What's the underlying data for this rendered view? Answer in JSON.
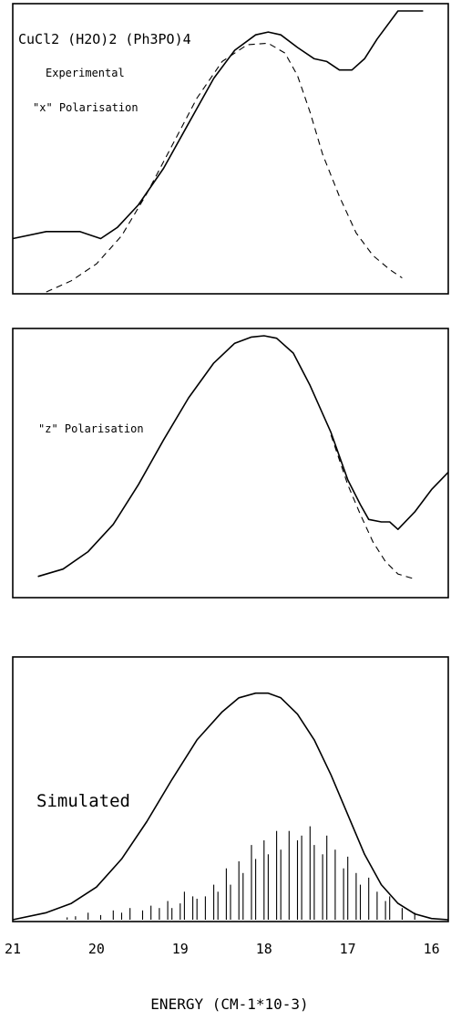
{
  "chart_data": [
    {
      "type": "line",
      "title": "CuCl2 (H2O)2 (Ph3PO)4",
      "labels": [
        "Experimental",
        "\"x\" Polarisation"
      ],
      "x_unit": "CM-1*10-3",
      "xlim": [
        21,
        15.8
      ],
      "ylim": [
        0,
        1
      ],
      "series": [
        {
          "style": "solid",
          "x": [
            21.0,
            20.6,
            20.2,
            19.95,
            19.75,
            19.5,
            19.2,
            18.9,
            18.6,
            18.35,
            18.1,
            17.95,
            17.8,
            17.6,
            17.4,
            17.25,
            17.1,
            16.95,
            16.8,
            16.65,
            16.4,
            16.1
          ],
          "y": [
            0.19,
            0.215,
            0.215,
            0.19,
            0.23,
            0.31,
            0.44,
            0.6,
            0.76,
            0.86,
            0.915,
            0.925,
            0.915,
            0.87,
            0.83,
            0.82,
            0.79,
            0.79,
            0.83,
            0.9,
            1.0,
            1.0
          ]
        },
        {
          "style": "dashed",
          "x": [
            20.6,
            20.3,
            20.0,
            19.7,
            19.4,
            19.1,
            18.8,
            18.5,
            18.2,
            17.95,
            17.75,
            17.6,
            17.45,
            17.3,
            17.1,
            16.9,
            16.7,
            16.5,
            16.35
          ],
          "y": [
            0.0,
            0.04,
            0.1,
            0.2,
            0.35,
            0.52,
            0.69,
            0.82,
            0.88,
            0.885,
            0.85,
            0.77,
            0.64,
            0.49,
            0.34,
            0.21,
            0.13,
            0.08,
            0.05
          ]
        }
      ]
    },
    {
      "type": "line",
      "labels": [
        "\"z\" Polarisation"
      ],
      "xlim": [
        21,
        15.8
      ],
      "ylim": [
        0,
        1
      ],
      "series": [
        {
          "style": "solid",
          "x": [
            20.7,
            20.4,
            20.1,
            19.8,
            19.5,
            19.2,
            18.9,
            18.6,
            18.35,
            18.15,
            18.0,
            17.85,
            17.65,
            17.45,
            17.2,
            17.0,
            16.85,
            16.75,
            16.6,
            16.5,
            16.4,
            16.2,
            16.0,
            15.8
          ],
          "y": [
            0.03,
            0.06,
            0.13,
            0.24,
            0.4,
            0.58,
            0.75,
            0.89,
            0.97,
            0.995,
            1.0,
            0.99,
            0.93,
            0.8,
            0.61,
            0.42,
            0.32,
            0.26,
            0.25,
            0.25,
            0.22,
            0.29,
            0.38,
            0.45
          ]
        },
        {
          "style": "dashed",
          "x": [
            17.2,
            17.0,
            16.85,
            16.7,
            16.55,
            16.4,
            16.2
          ],
          "y": [
            0.6,
            0.4,
            0.28,
            0.17,
            0.09,
            0.04,
            0.02
          ]
        }
      ]
    },
    {
      "type": "line",
      "labels": [
        "Simulated"
      ],
      "xlabel": "ENERGY (CM-1*10-3)",
      "xticks": [
        21,
        20,
        19,
        18,
        17,
        16
      ],
      "xlim": [
        21,
        15.8
      ],
      "ylim": [
        0,
        1
      ],
      "series": [
        {
          "style": "solid",
          "x": [
            21.0,
            20.6,
            20.3,
            20.0,
            19.7,
            19.4,
            19.1,
            18.8,
            18.5,
            18.3,
            18.1,
            17.95,
            17.8,
            17.6,
            17.4,
            17.2,
            17.0,
            16.8,
            16.6,
            16.4,
            16.2,
            16.0,
            15.8
          ],
          "y": [
            0.0,
            0.03,
            0.07,
            0.14,
            0.26,
            0.42,
            0.6,
            0.77,
            0.89,
            0.95,
            0.97,
            0.97,
            0.95,
            0.88,
            0.77,
            0.62,
            0.45,
            0.28,
            0.15,
            0.07,
            0.025,
            0.005,
            0.0
          ]
        },
        {
          "style": "sticks",
          "x": [
            20.35,
            20.25,
            20.1,
            19.95,
            19.8,
            19.7,
            19.6,
            19.45,
            19.35,
            19.25,
            19.15,
            19.1,
            19.0,
            18.95,
            18.85,
            18.8,
            18.7,
            18.6,
            18.55,
            18.45,
            18.4,
            18.3,
            18.25,
            18.15,
            18.1,
            18.0,
            17.95,
            17.85,
            17.8,
            17.7,
            17.6,
            17.55,
            17.45,
            17.4,
            17.3,
            17.25,
            17.15,
            17.05,
            17.0,
            16.9,
            16.85,
            16.75,
            16.65,
            16.55,
            16.5,
            16.35,
            16.2
          ],
          "y": [
            0.01,
            0.015,
            0.03,
            0.02,
            0.04,
            0.03,
            0.05,
            0.04,
            0.06,
            0.05,
            0.08,
            0.05,
            0.07,
            0.12,
            0.1,
            0.09,
            0.1,
            0.15,
            0.12,
            0.22,
            0.15,
            0.25,
            0.2,
            0.32,
            0.26,
            0.34,
            0.28,
            0.38,
            0.3,
            0.38,
            0.34,
            0.36,
            0.4,
            0.32,
            0.28,
            0.36,
            0.3,
            0.22,
            0.27,
            0.2,
            0.15,
            0.18,
            0.12,
            0.08,
            0.1,
            0.05,
            0.03
          ]
        }
      ]
    }
  ]
}
